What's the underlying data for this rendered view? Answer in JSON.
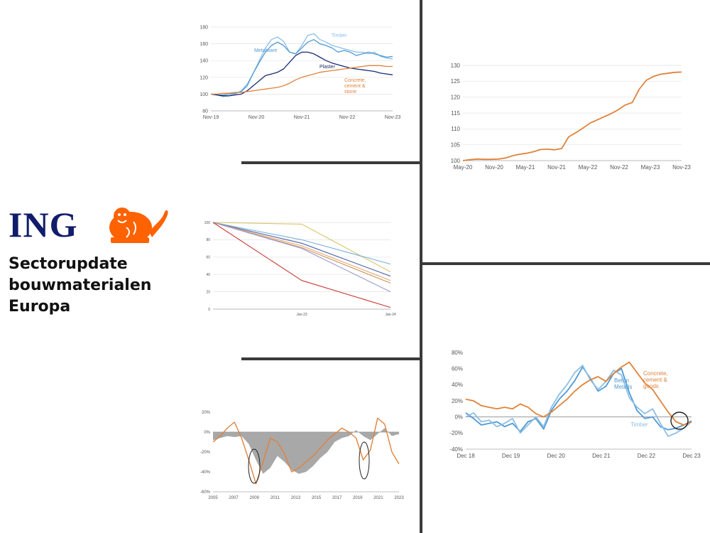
{
  "header": {
    "logo_text": "ING",
    "title_lines": [
      "Sectorupdate",
      "bouwmaterialen",
      "Europa"
    ]
  },
  "colors": {
    "ing_orange": "#ff6200",
    "ing_navy": "#111c6b"
  },
  "chart_data": [
    {
      "type": "line",
      "x_ticks": [
        "Nov-19",
        "Nov-20",
        "Nov-21",
        "Nov-22",
        "Nov-23"
      ],
      "y_ticks": [
        80,
        100,
        120,
        140,
        160,
        180
      ],
      "ylim": [
        80,
        180
      ],
      "series": [
        {
          "name": "Timber",
          "color": "#8cbfe6",
          "values": [
            100,
            99,
            97,
            98,
            100,
            104,
            112,
            125,
            140,
            155,
            165,
            168,
            163,
            150,
            148,
            158,
            170,
            172,
            165,
            162,
            158,
            156,
            154,
            152,
            150,
            150,
            148,
            150,
            145,
            143,
            142
          ]
        },
        {
          "name": "Metalware",
          "color": "#4f9ad3",
          "values": [
            100,
            99,
            99,
            100,
            101,
            103,
            110,
            125,
            138,
            150,
            158,
            162,
            158,
            150,
            148,
            155,
            162,
            165,
            160,
            158,
            155,
            150,
            152,
            150,
            146,
            148,
            150,
            148,
            146,
            144,
            145
          ]
        },
        {
          "name": "Plaster",
          "color": "#1a2b6d",
          "values": [
            100,
            99,
            98,
            98,
            99,
            100,
            104,
            110,
            116,
            122,
            124,
            126,
            130,
            138,
            146,
            150,
            150,
            148,
            144,
            140,
            137,
            135,
            133,
            131,
            130,
            129,
            128,
            127,
            125,
            124,
            123
          ]
        },
        {
          "name": "Concrete, cement & stone",
          "color": "#e0823a",
          "values": [
            100,
            100,
            101,
            101,
            102,
            102,
            103,
            104,
            105,
            106,
            107,
            108,
            110,
            113,
            117,
            120,
            122,
            124,
            126,
            127,
            128,
            129,
            130,
            131,
            132,
            133,
            134,
            134,
            134,
            133,
            133
          ]
        }
      ]
    },
    {
      "type": "line",
      "x_ticks": [
        "May-20",
        "Nov-20",
        "May-21",
        "Nov-21",
        "May-22",
        "Nov-22",
        "May-23",
        "Nov-23"
      ],
      "y_ticks": [
        100,
        105,
        110,
        115,
        120,
        125,
        130
      ],
      "ylim": [
        100,
        130
      ],
      "series": [
        {
          "name": "",
          "color": "#e0823a",
          "values": [
            100,
            100.3,
            100.5,
            100.4,
            100.4,
            100.5,
            100.8,
            101.5,
            102,
            102.3,
            102.8,
            103.5,
            103.6,
            103.4,
            103.8,
            107.5,
            108.8,
            110.2,
            111.8,
            112.8,
            113.8,
            114.8,
            116,
            117.5,
            118.3,
            122.5,
            125.3,
            126.5,
            127.2,
            127.5,
            127.8,
            127.9
          ]
        }
      ]
    },
    {
      "type": "line",
      "x_ticks": [
        "",
        "Jan-23",
        "Jan-24"
      ],
      "y_ticks": [
        0,
        20,
        40,
        60,
        80,
        100
      ],
      "ylim": [
        0,
        100
      ],
      "series": [
        {
          "name": "",
          "color": "#d9c66a",
          "values": [
            100,
            98,
            43
          ]
        },
        {
          "name": "",
          "color": "#7ab0dc",
          "values": [
            100,
            80,
            52
          ]
        },
        {
          "name": "",
          "color": "#4a63a8",
          "values": [
            100,
            76,
            38
          ]
        },
        {
          "name": "",
          "color": "#e8a56a",
          "values": [
            100,
            73,
            33
          ]
        },
        {
          "name": "",
          "color": "#c9955a",
          "values": [
            100,
            71,
            30
          ]
        },
        {
          "name": "",
          "color": "#9b9bd6",
          "values": [
            100,
            70,
            20
          ]
        },
        {
          "name": "",
          "color": "#c93b35",
          "values": [
            100,
            33,
            2
          ]
        }
      ]
    },
    {
      "type": "area",
      "x_ticks": [
        "2005",
        "2007",
        "2009",
        "2011",
        "2013",
        "2015",
        "2017",
        "2019",
        "2021",
        "2023"
      ],
      "y_ticks": [
        "20%",
        "0%",
        "-20%",
        "-40%",
        "-60%"
      ],
      "ylim": [
        -60,
        20
      ],
      "series": [
        {
          "name": "",
          "color": "#999999",
          "values": [
            -8,
            -6,
            -4,
            -5,
            -4,
            -12,
            -28,
            -42,
            -36,
            -24,
            -30,
            -38,
            -42,
            -40,
            -34,
            -26,
            -20,
            -10,
            -6,
            -4,
            2,
            -4,
            -8,
            -2,
            4,
            -4,
            -2
          ]
        },
        {
          "name": "",
          "color": "#e0823a",
          "values": [
            -10,
            -4,
            4,
            10,
            -6,
            -28,
            -52,
            -30,
            -6,
            -10,
            -22,
            -40,
            -36,
            -30,
            -24,
            -16,
            -8,
            -2,
            4,
            0,
            -6,
            -28,
            -18,
            14,
            8,
            -20,
            -32
          ]
        }
      ]
    },
    {
      "type": "line",
      "x_ticks": [
        "Dec 18",
        "Dec 19",
        "Dec 20",
        "Dec 21",
        "Dec 22",
        "Dec 23"
      ],
      "y_ticks": [
        "80%",
        "60%",
        "40%",
        "20%",
        "0%",
        "-20%",
        "-40%"
      ],
      "ylim": [
        -40,
        80
      ],
      "series": [
        {
          "name": "Beton Metalls",
          "color": "#4f9ad3",
          "values": [
            5,
            -2,
            -10,
            -8,
            -6,
            -12,
            -8,
            -18,
            -6,
            -2,
            -15,
            8,
            22,
            32,
            45,
            62,
            48,
            32,
            38,
            54,
            60,
            30,
            8,
            -2,
            0,
            -12,
            -16,
            -14,
            -10,
            -5
          ]
        },
        {
          "name": "Timber",
          "color": "#8cbfe6",
          "values": [
            0,
            5,
            -6,
            -4,
            -12,
            -8,
            -2,
            -20,
            -10,
            0,
            -12,
            12,
            28,
            40,
            55,
            64,
            46,
            34,
            44,
            58,
            52,
            24,
            12,
            4,
            10,
            -8,
            -24,
            -20,
            -14,
            -6
          ]
        },
        {
          "name": "Concrete, cement & goods",
          "color": "#e0823a",
          "values": [
            22,
            20,
            14,
            12,
            10,
            12,
            10,
            16,
            12,
            4,
            0,
            6,
            14,
            22,
            32,
            40,
            46,
            50,
            44,
            54,
            62,
            68,
            55,
            42,
            34,
            20,
            6,
            -6,
            -10,
            -6
          ]
        }
      ]
    }
  ]
}
